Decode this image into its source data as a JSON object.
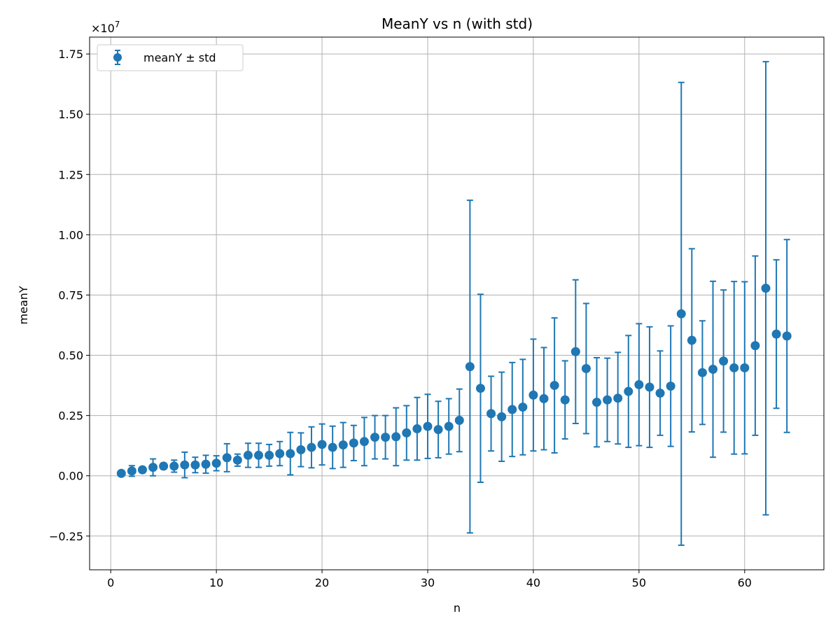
{
  "chart_data": {
    "type": "scatter",
    "title": "MeanY vs n (with std)",
    "xlabel": "n",
    "ylabel": "meanY",
    "y_offset_text": "×10",
    "y_offset_exponent": "7",
    "xlim": [
      -2,
      67.5
    ],
    "ylim": [
      -0.39,
      1.82
    ],
    "x_ticks": [
      0,
      10,
      20,
      30,
      40,
      50,
      60
    ],
    "x_tick_labels": [
      "0",
      "10",
      "20",
      "30",
      "40",
      "50",
      "60"
    ],
    "y_ticks": [
      -0.25,
      0.0,
      0.25,
      0.5,
      0.75,
      1.0,
      1.25,
      1.5,
      1.75
    ],
    "y_tick_labels": [
      "−0.25",
      "0.00",
      "0.25",
      "0.50",
      "0.75",
      "1.00",
      "1.25",
      "1.50",
      "1.75"
    ],
    "grid": true,
    "legend_position": "top-left",
    "color": "#1f77b4",
    "series": [
      {
        "name": "meanY ± std",
        "x": [
          1,
          2,
          3,
          4,
          5,
          6,
          7,
          8,
          9,
          10,
          11,
          12,
          13,
          14,
          15,
          16,
          17,
          18,
          19,
          20,
          21,
          22,
          23,
          24,
          25,
          26,
          27,
          28,
          29,
          30,
          31,
          32,
          33,
          34,
          35,
          36,
          37,
          38,
          39,
          40,
          41,
          42,
          43,
          44,
          45,
          46,
          47,
          48,
          49,
          50,
          51,
          52,
          53,
          54,
          55,
          56,
          57,
          58,
          59,
          60,
          61,
          62,
          63,
          64
        ],
        "y": [
          0.01,
          0.02,
          0.025,
          0.035,
          0.04,
          0.04,
          0.045,
          0.045,
          0.048,
          0.052,
          0.075,
          0.065,
          0.085,
          0.085,
          0.085,
          0.092,
          0.092,
          0.108,
          0.118,
          0.13,
          0.118,
          0.128,
          0.136,
          0.142,
          0.16,
          0.16,
          0.162,
          0.178,
          0.195,
          0.205,
          0.192,
          0.205,
          0.23,
          0.453,
          0.363,
          0.258,
          0.245,
          0.275,
          0.285,
          0.335,
          0.32,
          0.375,
          0.315,
          0.515,
          0.445,
          0.305,
          0.315,
          0.322,
          0.35,
          0.378,
          0.368,
          0.343,
          0.372,
          0.672,
          0.562,
          0.428,
          0.442,
          0.476,
          0.448,
          0.448,
          0.54,
          0.778,
          0.588,
          0.58
        ],
        "err": [
          0.008,
          0.022,
          0.01,
          0.035,
          0.012,
          0.025,
          0.053,
          0.032,
          0.037,
          0.031,
          0.058,
          0.025,
          0.05,
          0.05,
          0.045,
          0.05,
          0.088,
          0.07,
          0.085,
          0.085,
          0.088,
          0.093,
          0.073,
          0.1,
          0.09,
          0.09,
          0.12,
          0.113,
          0.13,
          0.133,
          0.117,
          0.115,
          0.13,
          0.69,
          0.39,
          0.155,
          0.185,
          0.195,
          0.198,
          0.232,
          0.212,
          0.28,
          0.162,
          0.298,
          0.27,
          0.185,
          0.173,
          0.19,
          0.232,
          0.253,
          0.25,
          0.175,
          0.25,
          0.96,
          0.38,
          0.215,
          0.365,
          0.295,
          0.358,
          0.357,
          0.372,
          0.94,
          0.308,
          0.4
        ]
      }
    ]
  }
}
